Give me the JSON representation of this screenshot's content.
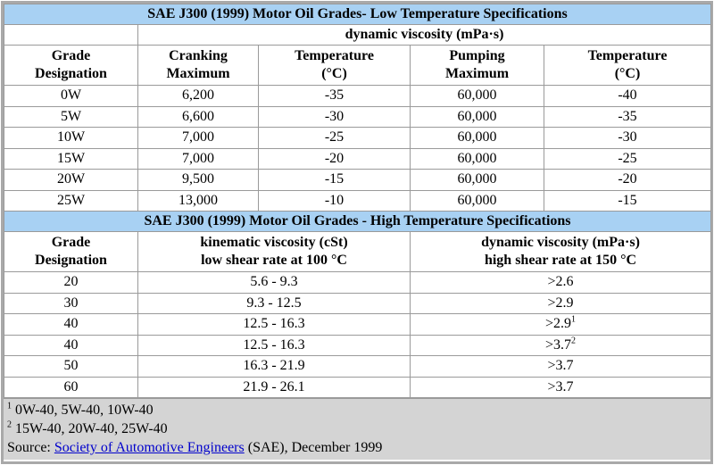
{
  "low_temp": {
    "title": "SAE J300  (1999) Motor Oil Grades- Low Temperature Specifications",
    "group_header": "dynamic viscosity (mPa·s)",
    "headers": [
      [
        "Grade",
        "Designation"
      ],
      [
        "Cranking",
        "Maximum"
      ],
      [
        "Temperature",
        "(°C)"
      ],
      [
        "Pumping",
        "Maximum"
      ],
      [
        "Temperature",
        "(°C)"
      ]
    ],
    "rows": [
      [
        "0W",
        "6,200",
        "-35",
        "60,000",
        "-40"
      ],
      [
        "5W",
        "6,600",
        "-30",
        "60,000",
        "-35"
      ],
      [
        "10W",
        "7,000",
        "-25",
        "60,000",
        "-30"
      ],
      [
        "15W",
        "7,000",
        "-20",
        "60,000",
        "-25"
      ],
      [
        "20W",
        "9,500",
        "-15",
        "60,000",
        "-20"
      ],
      [
        "25W",
        "13,000",
        "-10",
        "60,000",
        "-15"
      ]
    ]
  },
  "high_temp": {
    "title": "SAE J300  (1999) Motor Oil Grades - High Temperature Specifications",
    "headers": [
      [
        "Grade",
        "Designation"
      ],
      [
        "kinematic viscosity (cSt)",
        "low shear rate at 100 °C"
      ],
      [
        "dynamic viscosity (mPa·s)",
        "high shear rate at 150 °C"
      ]
    ],
    "rows": [
      {
        "grade": "20",
        "kinematic": "5.6 - 9.3",
        "dynamic": ">2.6"
      },
      {
        "grade": "30",
        "kinematic": "9.3 - 12.5",
        "dynamic": ">2.9"
      },
      {
        "grade": "40",
        "kinematic": "12.5 - 16.3",
        "dynamic": ">2.9",
        "note": "1"
      },
      {
        "grade": "40",
        "kinematic": "12.5 - 16.3",
        "dynamic": ">3.7",
        "note": "2"
      },
      {
        "grade": "50",
        "kinematic": "16.3 - 21.9",
        "dynamic": ">3.7"
      },
      {
        "grade": "60",
        "kinematic": "21.9 - 26.1",
        "dynamic": ">3.7"
      }
    ]
  },
  "footnotes": [
    {
      "marker": "1",
      "text": "0W-40, 5W-40, 10W-40"
    },
    {
      "marker": "2",
      "text": "15W-40, 20W-40, 25W-40"
    }
  ],
  "source": {
    "prefix": "Source:",
    "link": "Society of Automotive Engineers",
    "suffix": "(SAE), December 1999"
  }
}
